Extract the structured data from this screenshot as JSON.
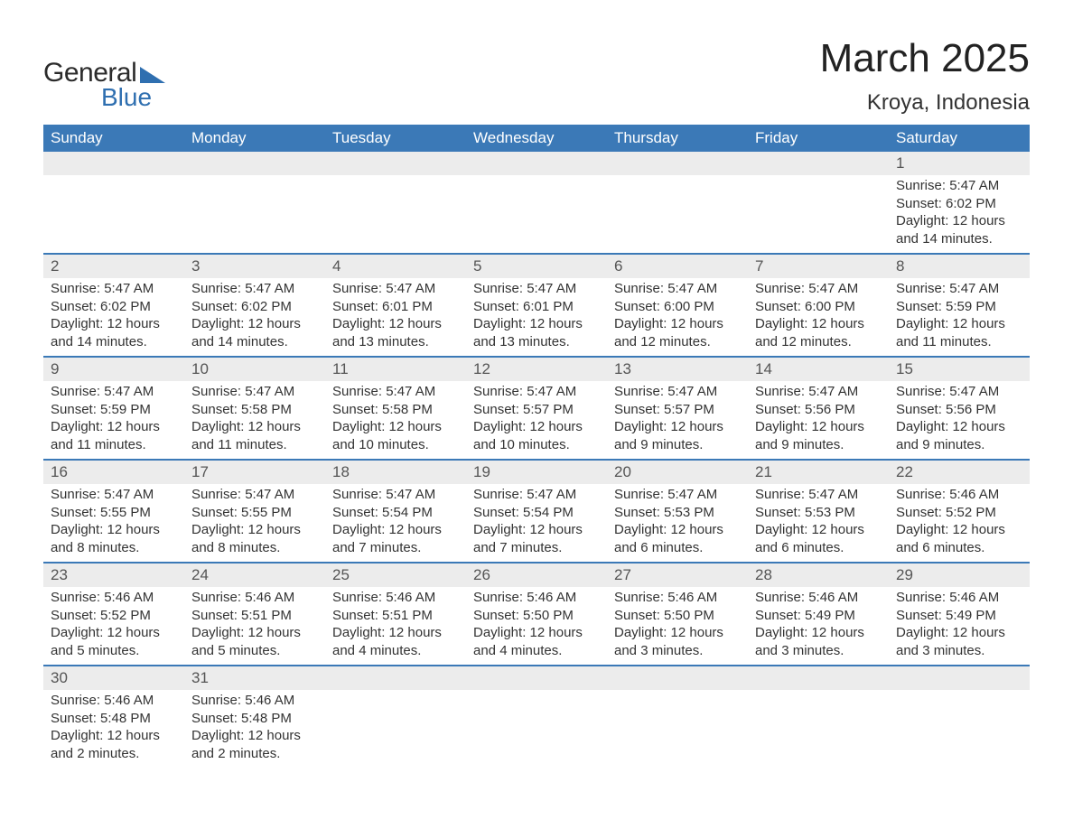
{
  "brand": {
    "part1": "General",
    "part2": "Blue"
  },
  "title": {
    "month": "March 2025",
    "location": "Kroya, Indonesia"
  },
  "colors": {
    "header_bg": "#3b79b7",
    "header_text": "#ffffff",
    "daynum_bg": "#ececec",
    "row_border": "#3b79b7",
    "body_text": "#333333",
    "logo_blue": "#2f6fb0"
  },
  "day_headers": [
    "Sunday",
    "Monday",
    "Tuesday",
    "Wednesday",
    "Thursday",
    "Friday",
    "Saturday"
  ],
  "weeks": [
    {
      "numbers": [
        "",
        "",
        "",
        "",
        "",
        "",
        "1"
      ],
      "cells": [
        null,
        null,
        null,
        null,
        null,
        null,
        {
          "sunrise": "Sunrise: 5:47 AM",
          "sunset": "Sunset: 6:02 PM",
          "day1": "Daylight: 12 hours",
          "day2": "and 14 minutes."
        }
      ]
    },
    {
      "numbers": [
        "2",
        "3",
        "4",
        "5",
        "6",
        "7",
        "8"
      ],
      "cells": [
        {
          "sunrise": "Sunrise: 5:47 AM",
          "sunset": "Sunset: 6:02 PM",
          "day1": "Daylight: 12 hours",
          "day2": "and 14 minutes."
        },
        {
          "sunrise": "Sunrise: 5:47 AM",
          "sunset": "Sunset: 6:02 PM",
          "day1": "Daylight: 12 hours",
          "day2": "and 14 minutes."
        },
        {
          "sunrise": "Sunrise: 5:47 AM",
          "sunset": "Sunset: 6:01 PM",
          "day1": "Daylight: 12 hours",
          "day2": "and 13 minutes."
        },
        {
          "sunrise": "Sunrise: 5:47 AM",
          "sunset": "Sunset: 6:01 PM",
          "day1": "Daylight: 12 hours",
          "day2": "and 13 minutes."
        },
        {
          "sunrise": "Sunrise: 5:47 AM",
          "sunset": "Sunset: 6:00 PM",
          "day1": "Daylight: 12 hours",
          "day2": "and 12 minutes."
        },
        {
          "sunrise": "Sunrise: 5:47 AM",
          "sunset": "Sunset: 6:00 PM",
          "day1": "Daylight: 12 hours",
          "day2": "and 12 minutes."
        },
        {
          "sunrise": "Sunrise: 5:47 AM",
          "sunset": "Sunset: 5:59 PM",
          "day1": "Daylight: 12 hours",
          "day2": "and 11 minutes."
        }
      ]
    },
    {
      "numbers": [
        "9",
        "10",
        "11",
        "12",
        "13",
        "14",
        "15"
      ],
      "cells": [
        {
          "sunrise": "Sunrise: 5:47 AM",
          "sunset": "Sunset: 5:59 PM",
          "day1": "Daylight: 12 hours",
          "day2": "and 11 minutes."
        },
        {
          "sunrise": "Sunrise: 5:47 AM",
          "sunset": "Sunset: 5:58 PM",
          "day1": "Daylight: 12 hours",
          "day2": "and 11 minutes."
        },
        {
          "sunrise": "Sunrise: 5:47 AM",
          "sunset": "Sunset: 5:58 PM",
          "day1": "Daylight: 12 hours",
          "day2": "and 10 minutes."
        },
        {
          "sunrise": "Sunrise: 5:47 AM",
          "sunset": "Sunset: 5:57 PM",
          "day1": "Daylight: 12 hours",
          "day2": "and 10 minutes."
        },
        {
          "sunrise": "Sunrise: 5:47 AM",
          "sunset": "Sunset: 5:57 PM",
          "day1": "Daylight: 12 hours",
          "day2": "and 9 minutes."
        },
        {
          "sunrise": "Sunrise: 5:47 AM",
          "sunset": "Sunset: 5:56 PM",
          "day1": "Daylight: 12 hours",
          "day2": "and 9 minutes."
        },
        {
          "sunrise": "Sunrise: 5:47 AM",
          "sunset": "Sunset: 5:56 PM",
          "day1": "Daylight: 12 hours",
          "day2": "and 9 minutes."
        }
      ]
    },
    {
      "numbers": [
        "16",
        "17",
        "18",
        "19",
        "20",
        "21",
        "22"
      ],
      "cells": [
        {
          "sunrise": "Sunrise: 5:47 AM",
          "sunset": "Sunset: 5:55 PM",
          "day1": "Daylight: 12 hours",
          "day2": "and 8 minutes."
        },
        {
          "sunrise": "Sunrise: 5:47 AM",
          "sunset": "Sunset: 5:55 PM",
          "day1": "Daylight: 12 hours",
          "day2": "and 8 minutes."
        },
        {
          "sunrise": "Sunrise: 5:47 AM",
          "sunset": "Sunset: 5:54 PM",
          "day1": "Daylight: 12 hours",
          "day2": "and 7 minutes."
        },
        {
          "sunrise": "Sunrise: 5:47 AM",
          "sunset": "Sunset: 5:54 PM",
          "day1": "Daylight: 12 hours",
          "day2": "and 7 minutes."
        },
        {
          "sunrise": "Sunrise: 5:47 AM",
          "sunset": "Sunset: 5:53 PM",
          "day1": "Daylight: 12 hours",
          "day2": "and 6 minutes."
        },
        {
          "sunrise": "Sunrise: 5:47 AM",
          "sunset": "Sunset: 5:53 PM",
          "day1": "Daylight: 12 hours",
          "day2": "and 6 minutes."
        },
        {
          "sunrise": "Sunrise: 5:46 AM",
          "sunset": "Sunset: 5:52 PM",
          "day1": "Daylight: 12 hours",
          "day2": "and 6 minutes."
        }
      ]
    },
    {
      "numbers": [
        "23",
        "24",
        "25",
        "26",
        "27",
        "28",
        "29"
      ],
      "cells": [
        {
          "sunrise": "Sunrise: 5:46 AM",
          "sunset": "Sunset: 5:52 PM",
          "day1": "Daylight: 12 hours",
          "day2": "and 5 minutes."
        },
        {
          "sunrise": "Sunrise: 5:46 AM",
          "sunset": "Sunset: 5:51 PM",
          "day1": "Daylight: 12 hours",
          "day2": "and 5 minutes."
        },
        {
          "sunrise": "Sunrise: 5:46 AM",
          "sunset": "Sunset: 5:51 PM",
          "day1": "Daylight: 12 hours",
          "day2": "and 4 minutes."
        },
        {
          "sunrise": "Sunrise: 5:46 AM",
          "sunset": "Sunset: 5:50 PM",
          "day1": "Daylight: 12 hours",
          "day2": "and 4 minutes."
        },
        {
          "sunrise": "Sunrise: 5:46 AM",
          "sunset": "Sunset: 5:50 PM",
          "day1": "Daylight: 12 hours",
          "day2": "and 3 minutes."
        },
        {
          "sunrise": "Sunrise: 5:46 AM",
          "sunset": "Sunset: 5:49 PM",
          "day1": "Daylight: 12 hours",
          "day2": "and 3 minutes."
        },
        {
          "sunrise": "Sunrise: 5:46 AM",
          "sunset": "Sunset: 5:49 PM",
          "day1": "Daylight: 12 hours",
          "day2": "and 3 minutes."
        }
      ]
    },
    {
      "numbers": [
        "30",
        "31",
        "",
        "",
        "",
        "",
        ""
      ],
      "cells": [
        {
          "sunrise": "Sunrise: 5:46 AM",
          "sunset": "Sunset: 5:48 PM",
          "day1": "Daylight: 12 hours",
          "day2": "and 2 minutes."
        },
        {
          "sunrise": "Sunrise: 5:46 AM",
          "sunset": "Sunset: 5:48 PM",
          "day1": "Daylight: 12 hours",
          "day2": "and 2 minutes."
        },
        null,
        null,
        null,
        null,
        null
      ]
    }
  ]
}
